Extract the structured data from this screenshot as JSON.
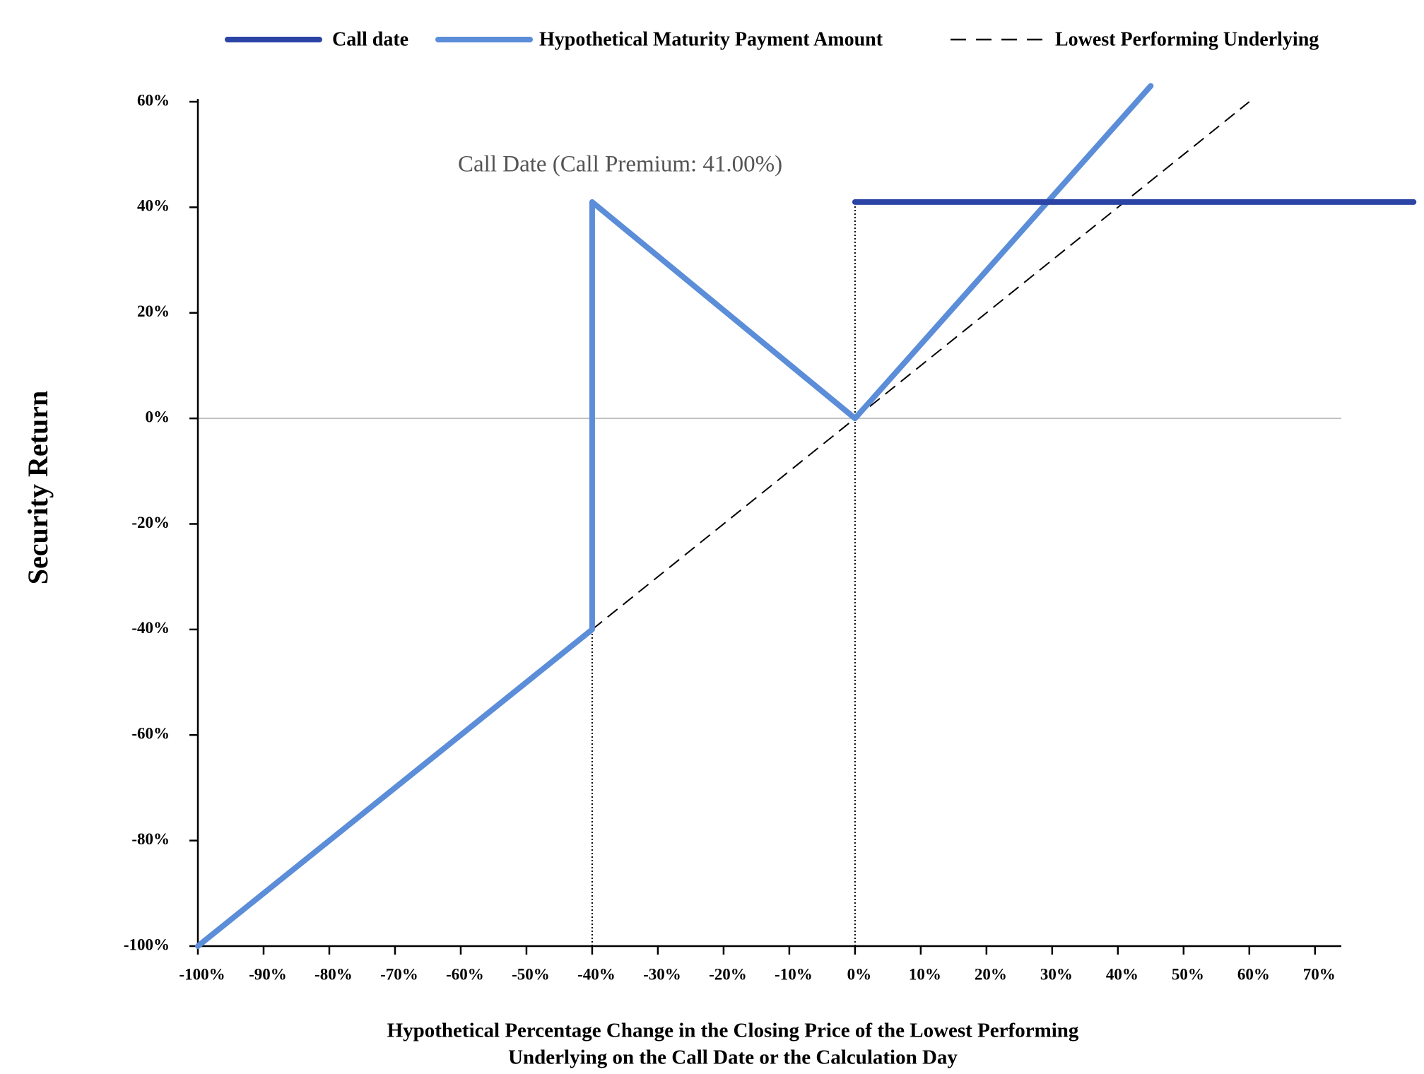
{
  "chart_data": {
    "type": "line",
    "series": [
      {
        "name": "Call date",
        "color": "#2b44a6",
        "style": "solid",
        "x": [
          0,
          85
        ],
        "values": [
          41,
          41
        ]
      },
      {
        "name": "Hypothetical Maturity Payment Amount",
        "color": "#5b8dd8",
        "style": "solid",
        "x": [
          -100,
          -40,
          -40,
          0,
          45
        ],
        "values": [
          -100,
          -40,
          41,
          0,
          63
        ]
      },
      {
        "name": "Lowest Performing Underlying",
        "color": "#000000",
        "style": "dashed",
        "x": [
          -40,
          60
        ],
        "values": [
          -40,
          60
        ]
      }
    ],
    "annotation": "Call Date (Call Premium: 41.00%)",
    "reference_lines": [
      {
        "x": -40,
        "y": 41
      },
      {
        "x": 0,
        "y": 41
      }
    ],
    "zero_line": true,
    "xlabel": [
      "Hypothetical Percentage Change in the Closing Price of the Lowest Performing",
      "Underlying on the Call Date or the Calculation Day"
    ],
    "ylabel": "Security Return",
    "xlim": [
      -100,
      74
    ],
    "ylim": [
      -100,
      60
    ],
    "xticks": [
      {
        "value": -100,
        "label": "-100%"
      },
      {
        "value": -90,
        "label": "-90%"
      },
      {
        "value": -80,
        "label": "-80%"
      },
      {
        "value": -70,
        "label": "-70%"
      },
      {
        "value": -60,
        "label": "-60%"
      },
      {
        "value": -50,
        "label": "-50%"
      },
      {
        "value": -40,
        "label": "-40%"
      },
      {
        "value": -30,
        "label": "-30%"
      },
      {
        "value": -20,
        "label": "-20%"
      },
      {
        "value": -10,
        "label": "-10%"
      },
      {
        "value": 0,
        "label": "0%"
      },
      {
        "value": 10,
        "label": "10%"
      },
      {
        "value": 20,
        "label": "20%"
      },
      {
        "value": 30,
        "label": "30%"
      },
      {
        "value": 40,
        "label": "40%"
      },
      {
        "value": 50,
        "label": "50%"
      },
      {
        "value": 60,
        "label": "60%"
      },
      {
        "value": 70,
        "label": "70%"
      }
    ],
    "yticks": [
      {
        "value": -100,
        "label": "-100%"
      },
      {
        "value": -80,
        "label": "-80%"
      },
      {
        "value": -60,
        "label": "-60%"
      },
      {
        "value": -40,
        "label": "-40%"
      },
      {
        "value": -20,
        "label": "-20%"
      },
      {
        "value": 0,
        "label": "0%"
      },
      {
        "value": 20,
        "label": "20%"
      },
      {
        "value": 40,
        "label": "40%"
      },
      {
        "value": 60,
        "label": "60%"
      }
    ]
  }
}
